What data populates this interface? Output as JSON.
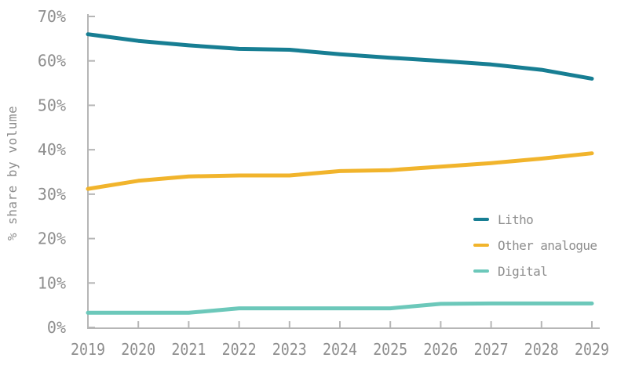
{
  "page": {
    "background": "#ffffff"
  },
  "chart_data": {
    "type": "line",
    "title": "",
    "xlabel": "",
    "ylabel": "% share by volume",
    "x": [
      2019,
      2020,
      2021,
      2022,
      2023,
      2024,
      2025,
      2026,
      2027,
      2028,
      2029
    ],
    "series": [
      {
        "name": "Litho",
        "color": "#177e93",
        "values": [
          66,
          64.5,
          63.5,
          62.7,
          62.5,
          61.5,
          60.7,
          60,
          59.2,
          58,
          56
        ]
      },
      {
        "name": "Other analogue",
        "color": "#f1b42c",
        "values": [
          31.2,
          33,
          34,
          34.2,
          34.2,
          35.2,
          35.4,
          36.2,
          37,
          38,
          39.2
        ]
      },
      {
        "name": "Digital",
        "color": "#6cc8ba",
        "values": [
          3.3,
          3.3,
          3.3,
          4.3,
          4.3,
          4.3,
          4.3,
          5.3,
          5.4,
          5.4,
          5.4
        ]
      }
    ],
    "ylim": [
      0,
      70
    ],
    "ytick_step": 10,
    "ytick_suffix": "%",
    "grid": false,
    "legend_position": "right-middle",
    "axis_color": "#b6b6b6",
    "label_color": "#8e8e8e"
  }
}
